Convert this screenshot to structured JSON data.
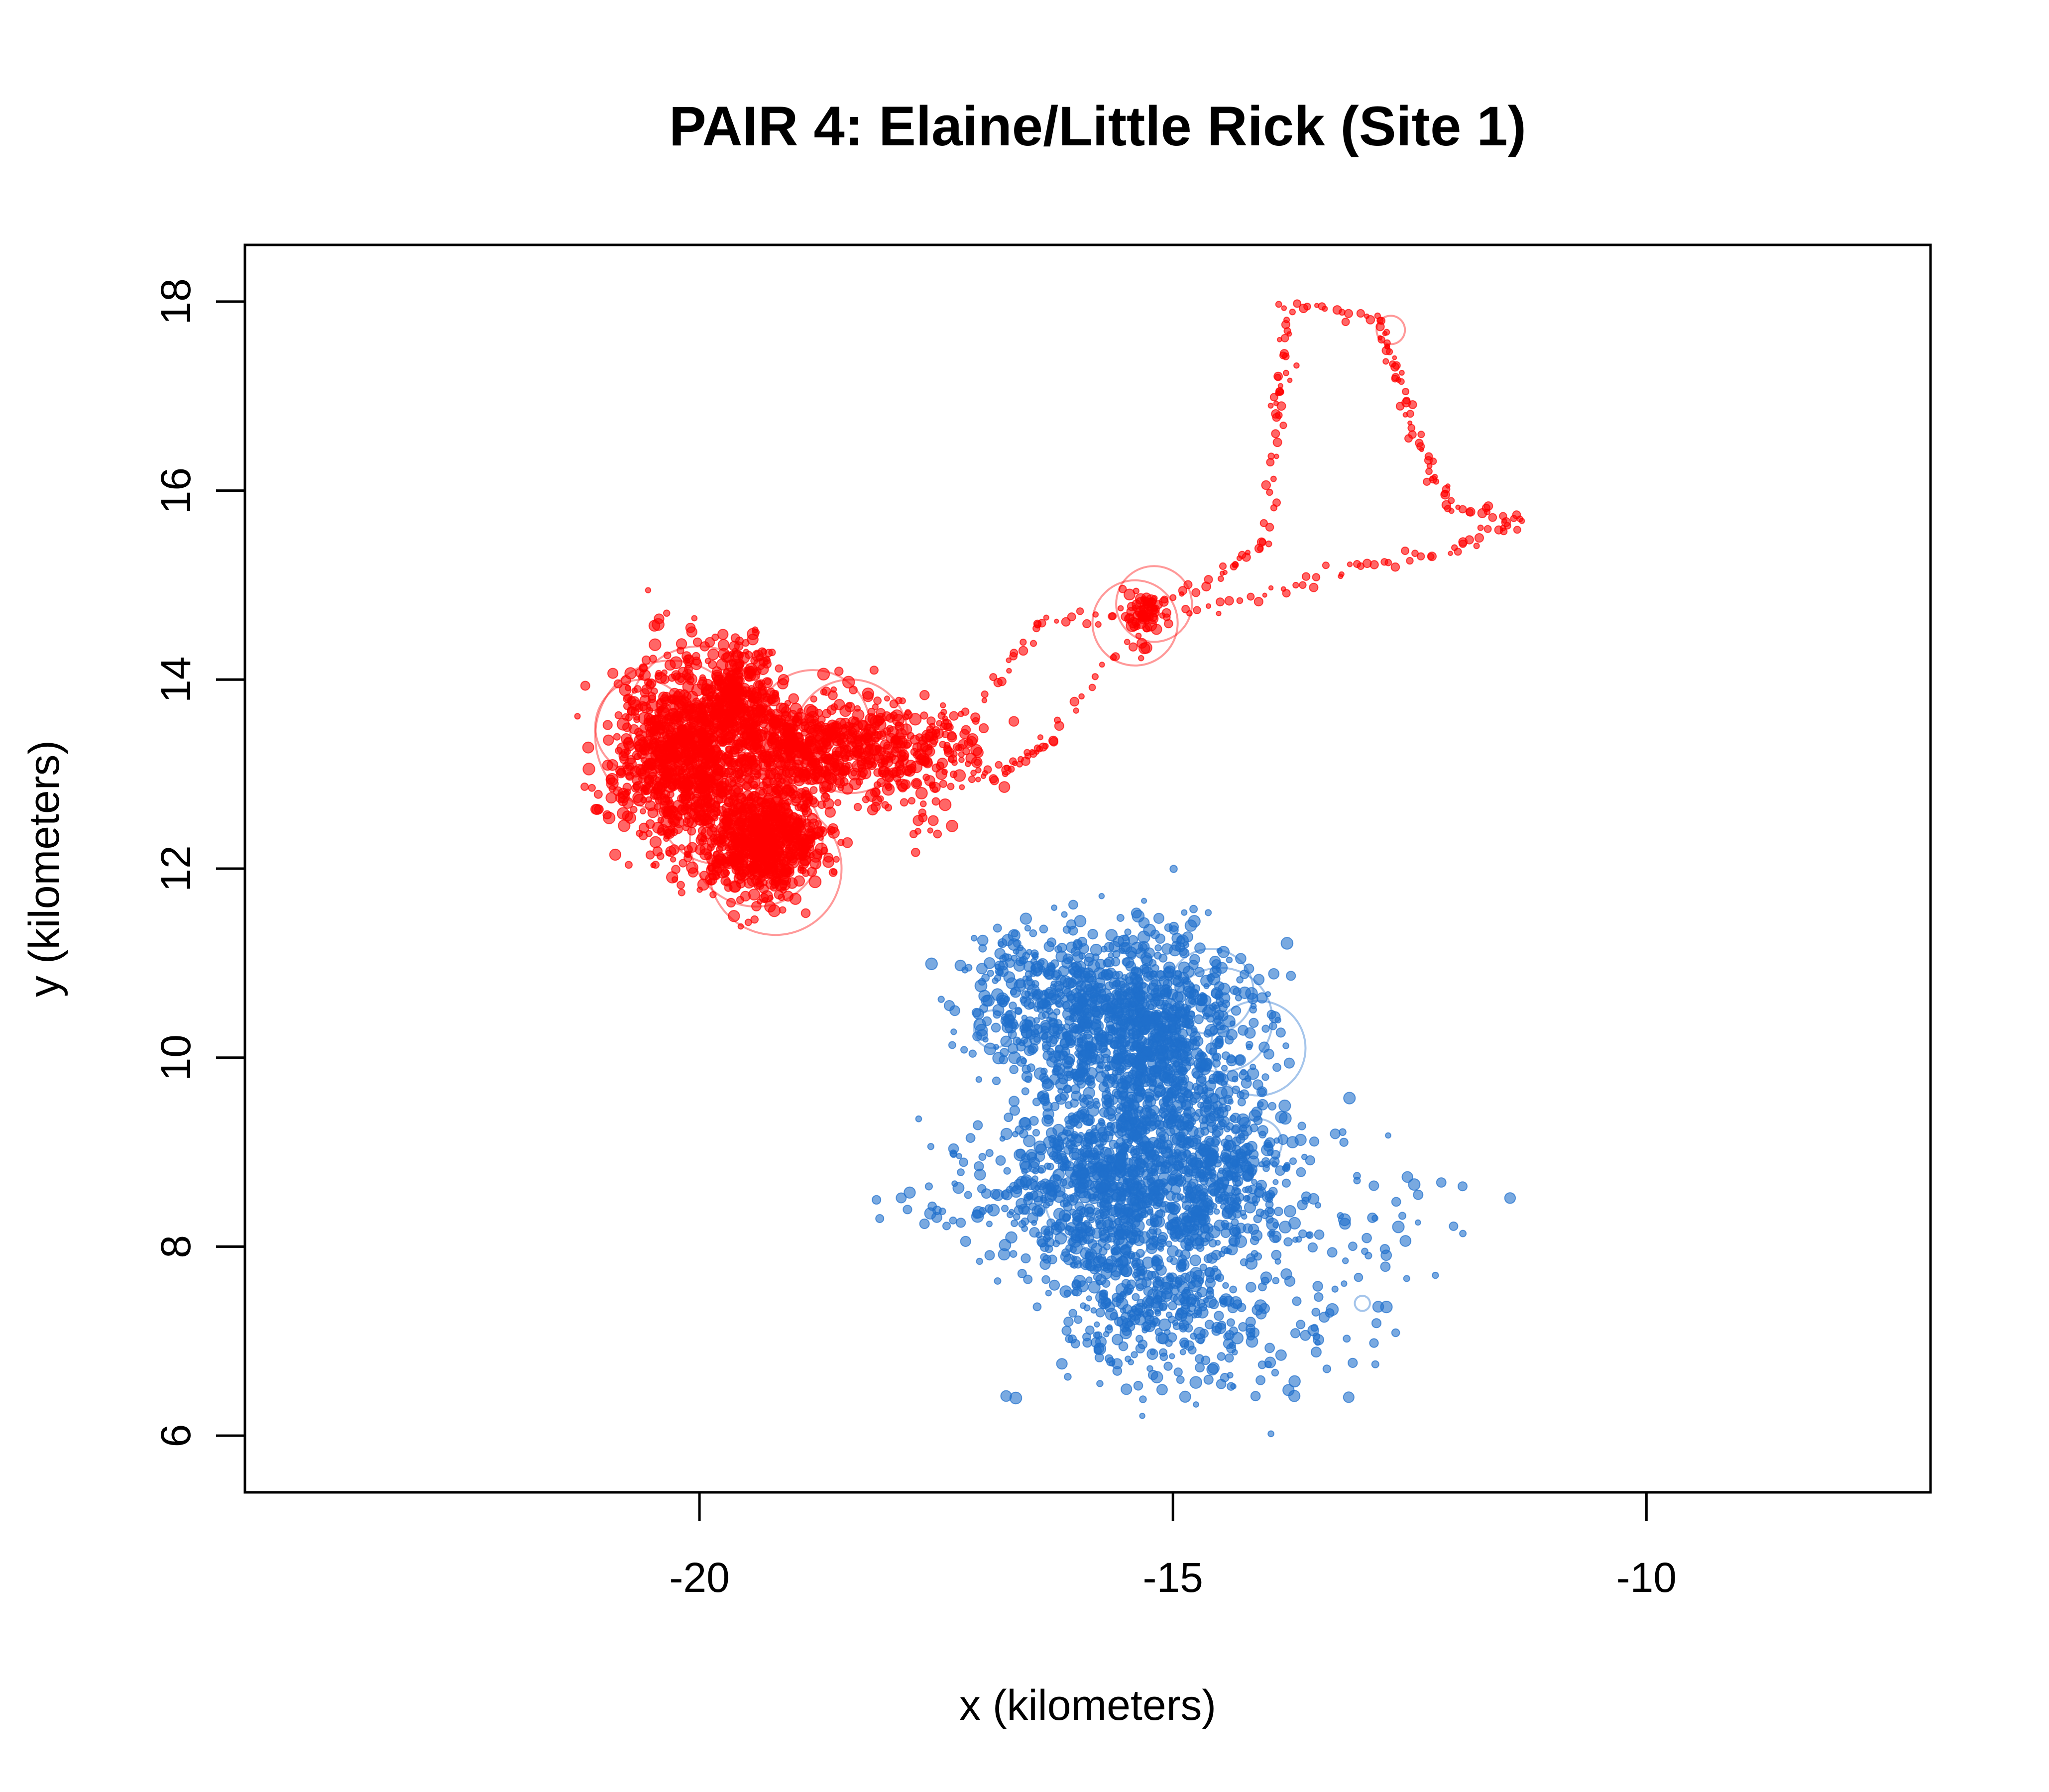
{
  "chart_data": {
    "type": "scatter",
    "title": "PAIR 4: Elaine/Little Rick (Site 1)",
    "xlabel": "x (kilometers)",
    "ylabel": "y (kilometers)",
    "xlim": [
      -24.8,
      -7
    ],
    "ylim": [
      5.4,
      18.6
    ],
    "xticks": [
      -20,
      -15,
      -10
    ],
    "yticks": [
      6,
      8,
      10,
      12,
      14,
      16,
      18
    ],
    "grid": false,
    "legend": "none",
    "series": [
      {
        "color": "#ff0000",
        "clusters": [
          {
            "cx": -20.2,
            "cy": 13.2,
            "sx": 0.35,
            "sy": 0.5,
            "n": 900
          },
          {
            "cx": -19.3,
            "cy": 12.3,
            "sx": 0.3,
            "sy": 0.3,
            "n": 700
          },
          {
            "cx": -18.9,
            "cy": 13.3,
            "sx": 0.5,
            "sy": 0.25,
            "n": 500
          },
          {
            "cx": -19.6,
            "cy": 13.8,
            "sx": 0.2,
            "sy": 0.3,
            "n": 300
          },
          {
            "cx": -17.8,
            "cy": 13.2,
            "sx": 0.4,
            "sy": 0.3,
            "n": 250
          },
          {
            "cx": -15.3,
            "cy": 14.7,
            "sx": 0.1,
            "sy": 0.15,
            "n": 60
          }
        ],
        "path": [
          [
            -17.0,
            13.8
          ],
          [
            -16.4,
            14.6
          ],
          [
            -15.4,
            14.7
          ],
          [
            -14.5,
            15.1
          ],
          [
            -14.0,
            15.5
          ],
          [
            -13.9,
            16.8
          ],
          [
            -13.8,
            17.2
          ],
          [
            -13.8,
            18.0
          ],
          [
            -12.8,
            17.8
          ],
          [
            -12.7,
            17.4
          ],
          [
            -12.5,
            16.8
          ],
          [
            -12.3,
            16.2
          ],
          [
            -12.0,
            15.8
          ],
          [
            -11.3,
            15.7
          ],
          [
            -12.0,
            15.4
          ],
          [
            -13.0,
            15.2
          ],
          [
            -14.0,
            14.9
          ],
          [
            -15.3,
            14.6
          ],
          [
            -16.3,
            13.4
          ],
          [
            -16.6,
            13.1
          ],
          [
            -17.2,
            13.0
          ]
        ],
        "large_circles": [
          {
            "x": -20.3,
            "y": 13.4,
            "r": 0.8
          },
          {
            "x": -20.0,
            "y": 13.6,
            "r": 0.75
          },
          {
            "x": -19.2,
            "y": 12.0,
            "r": 0.7
          },
          {
            "x": -19.4,
            "y": 12.3,
            "r": 0.7
          },
          {
            "x": -18.8,
            "y": 13.5,
            "r": 0.6
          },
          {
            "x": -18.4,
            "y": 13.4,
            "r": 0.6
          },
          {
            "x": -15.4,
            "y": 14.6,
            "r": 0.45
          },
          {
            "x": -15.2,
            "y": 14.8,
            "r": 0.4
          },
          {
            "x": -12.7,
            "y": 17.7,
            "r": 0.15
          },
          {
            "x": -20.6,
            "y": 13.5,
            "r": 0.5
          },
          {
            "x": -19.8,
            "y": 12.7,
            "r": 0.65
          }
        ]
      },
      {
        "color": "#1f6fcc",
        "clusters": [
          {
            "cx": -15.3,
            "cy": 10.2,
            "sx": 0.55,
            "sy": 0.55,
            "n": 1200
          },
          {
            "cx": -15.5,
            "cy": 8.6,
            "sx": 0.6,
            "sy": 0.5,
            "n": 900
          },
          {
            "cx": -16.4,
            "cy": 10.6,
            "sx": 0.4,
            "sy": 0.4,
            "n": 300
          },
          {
            "cx": -14.4,
            "cy": 8.8,
            "sx": 0.4,
            "sy": 0.4,
            "n": 300
          },
          {
            "cx": -15.2,
            "cy": 7.4,
            "sx": 0.5,
            "sy": 0.4,
            "n": 250
          },
          {
            "cx": -14.5,
            "cy": 7.2,
            "sx": 0.7,
            "sy": 0.5,
            "n": 150
          },
          {
            "cx": -16.8,
            "cy": 8.5,
            "sx": 0.6,
            "sy": 0.3,
            "n": 80
          },
          {
            "cx": -12.8,
            "cy": 8.3,
            "sx": 0.5,
            "sy": 0.5,
            "n": 40
          }
        ],
        "path": [],
        "large_circles": [
          {
            "x": -14.5,
            "y": 10.4,
            "r": 0.55
          },
          {
            "x": -14.1,
            "y": 10.1,
            "r": 0.5
          },
          {
            "x": -14.6,
            "y": 10.7,
            "r": 0.45
          },
          {
            "x": -15.9,
            "y": 8.5,
            "r": 0.45
          },
          {
            "x": -15.6,
            "y": 8.2,
            "r": 0.4
          },
          {
            "x": -14.1,
            "y": 9.1,
            "r": 0.25
          },
          {
            "x": -16.9,
            "y": 10.3,
            "r": 0.2
          },
          {
            "x": -13.0,
            "y": 7.4,
            "r": 0.08
          }
        ]
      }
    ]
  }
}
